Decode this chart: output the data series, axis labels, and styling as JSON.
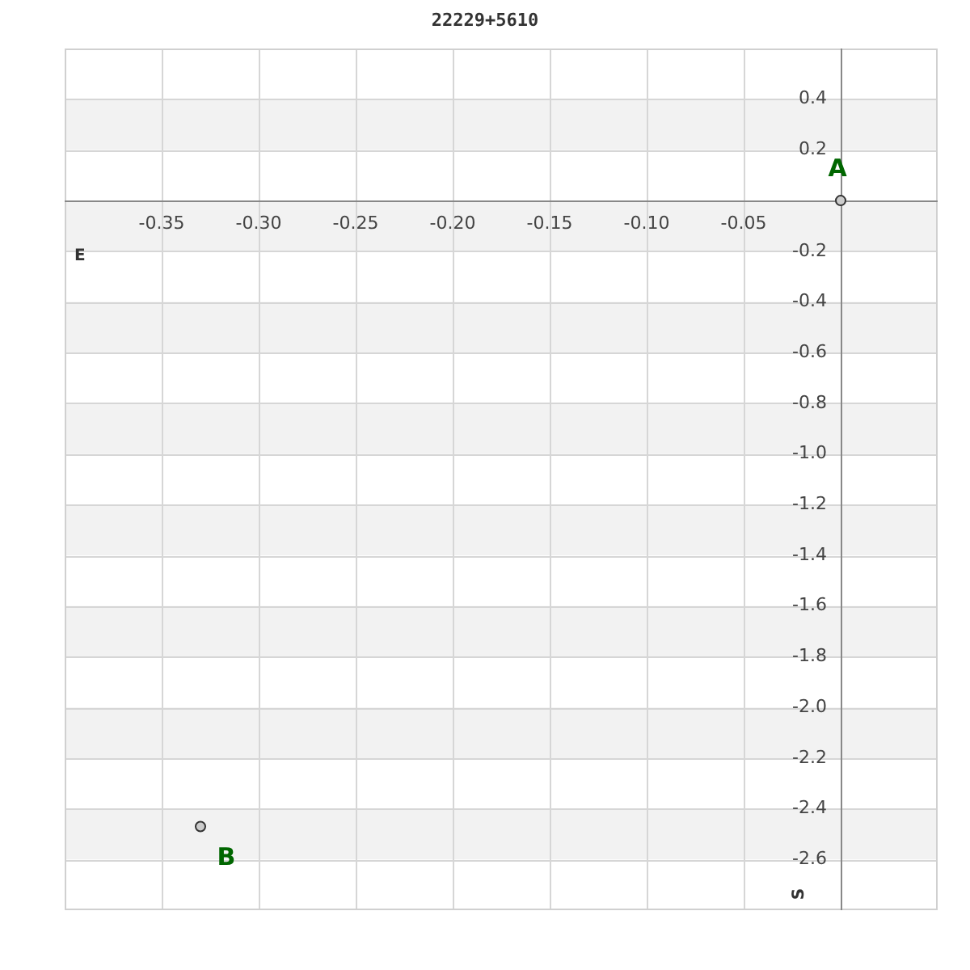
{
  "chart_data": {
    "type": "scatter",
    "title": "22229+5610",
    "xlabel": "E",
    "ylabel": "S",
    "x": [
      0,
      -0.33
    ],
    "values": [
      0,
      -2.47
    ],
    "color": "#cccccc",
    "marker": "circle",
    "annotations": [
      {
        "text": "A",
        "x": 0,
        "y": 0
      },
      {
        "text": "B",
        "x": -0.33,
        "y": -2.47
      }
    ],
    "xlim": [
      -0.4,
      0.05
    ],
    "xticks": [
      -0.35,
      {
        "value": -0.3,
        "label": "-0.30"
      },
      -0.25,
      {
        "value": -0.2,
        "label": "-0.20"
      },
      -0.15,
      {
        "value": -0.1,
        "label": "-0.10"
      },
      -0.05,
      {
        "value": 0,
        "label": null
      }
    ],
    "ylim": [
      -2.8,
      0.6
    ],
    "yticks": [
      0.4,
      0.2,
      {
        "value": 0,
        "label": null
      },
      -0.2,
      -0.4,
      -0.6,
      -0.8,
      {
        "value": -1,
        "label": "-1.0"
      },
      -1.2,
      -1.4,
      -1.6,
      -1.8,
      {
        "value": -2,
        "label": "-2.0"
      },
      -2.2,
      -2.4,
      -2.6
    ],
    "grid": true
  }
}
